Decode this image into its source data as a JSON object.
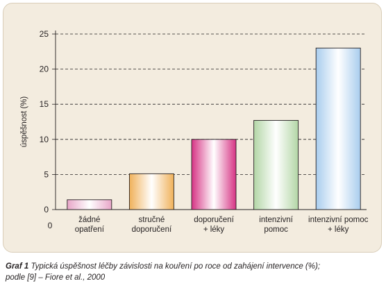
{
  "chart_data": {
    "type": "bar",
    "categories": [
      [
        "žádné",
        "opatření"
      ],
      [
        "stručné",
        "doporučení"
      ],
      [
        "doporučení",
        "+ léky"
      ],
      [
        "intenzivní",
        "pomoc"
      ],
      [
        "intenzivní pomoc",
        "+ léky"
      ]
    ],
    "values": [
      1.4,
      5.1,
      10.0,
      12.7,
      23.0
    ],
    "ylabel": "úspěšnost (%)",
    "xlabel": "",
    "ylim": [
      0,
      25
    ],
    "yticks": [
      0,
      5,
      10,
      15,
      20,
      25
    ],
    "x_origin_label": "0",
    "grid": "dashed horizontal",
    "bar_colors": [
      {
        "light": "#ffffff",
        "dark": "#e8a6c8",
        "edge": "#231f20"
      },
      {
        "light": "#ffffff",
        "dark": "#f0b15a",
        "edge": "#231f20"
      },
      {
        "light": "#ffffff",
        "dark": "#d63384",
        "edge": "#231f20"
      },
      {
        "light": "#ffffff",
        "dark": "#b3d6a6",
        "edge": "#231f20"
      },
      {
        "light": "#ffffff",
        "dark": "#a9cdee",
        "edge": "#231f20"
      }
    ]
  },
  "caption": {
    "label": "Graf 1",
    "text": "Typická úspěšnost léčby závislosti na kouření po roce od zahájení intervence (%);",
    "line2": "podle [9] – Fiore et al., 2000"
  }
}
